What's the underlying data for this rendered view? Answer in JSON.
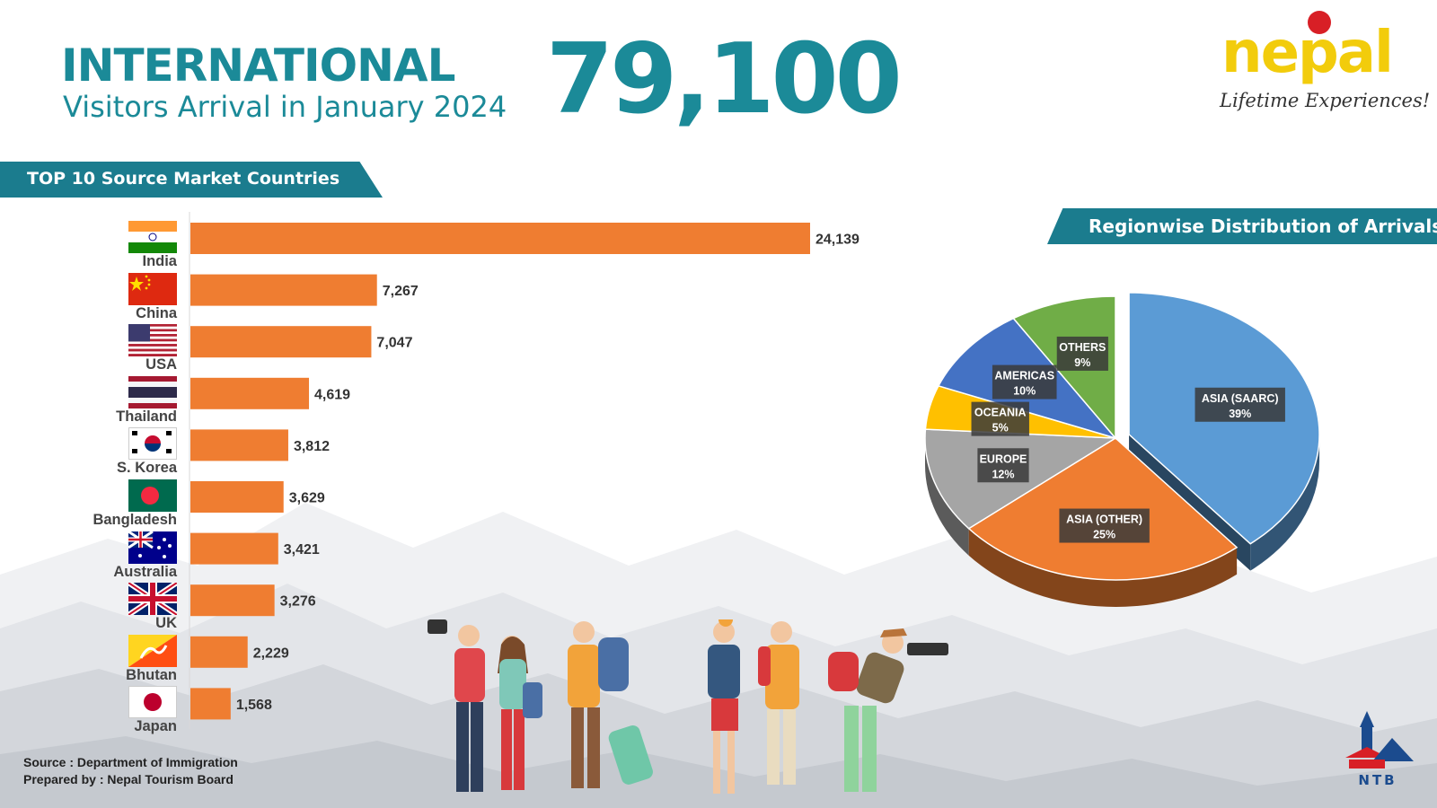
{
  "header": {
    "title_line1": "INTERNATIONAL",
    "title_line2": "Visitors Arrival in January 2024",
    "total": "79,100"
  },
  "logo": {
    "word": "nepal",
    "tagline": "Lifetime Experiences!"
  },
  "ntb_logo": {
    "text": "NTB"
  },
  "colors": {
    "teal": "#1b7c8e",
    "bar": "#ef7d31",
    "pie": [
      "#5b9bd5",
      "#ef7d31",
      "#a5a5a5",
      "#ffc000",
      "#4472c4",
      "#70ad47"
    ]
  },
  "bar_section": {
    "title": "TOP 10 Source Market Countries"
  },
  "pie_section": {
    "title": "Regionwise Distribution of Arrivals"
  },
  "source": {
    "line1": "Source : Department of Immigration",
    "line2": "Prepared by : Nepal Tourism Board"
  },
  "chart_data": [
    {
      "type": "bar",
      "orientation": "horizontal",
      "categories": [
        "India",
        "China",
        "USA",
        "Thailand",
        "S. Korea",
        "Bangladesh",
        "Australia",
        "UK",
        "Bhutan",
        "Japan"
      ],
      "values": [
        24139,
        7267,
        7047,
        4619,
        3812,
        3629,
        3421,
        3276,
        2229,
        1568
      ],
      "value_labels": [
        "24,139",
        "7,267",
        "7,047",
        "4,619",
        "3,812",
        "3,629",
        "3,421",
        "3,276",
        "2,229",
        "1,568"
      ],
      "flags": [
        "india-flag",
        "china-flag",
        "usa-flag",
        "thailand-flag",
        "south-korea-flag",
        "bangladesh-flag",
        "australia-flag",
        "uk-flag",
        "bhutan-flag",
        "japan-flag"
      ],
      "xlim": [
        0,
        24139
      ],
      "grid": false
    },
    {
      "type": "pie",
      "style": "3d",
      "categories": [
        "ASIA (SAARC)",
        "ASIA (OTHER)",
        "EUROPE",
        "OCEANIA",
        "AMERICAS",
        "OTHERS"
      ],
      "values": [
        39,
        25,
        12,
        5,
        10,
        9
      ],
      "value_labels": [
        "39%",
        "25%",
        "12%",
        "5%",
        "10%",
        "9%"
      ],
      "exploded": [
        "ASIA (SAARC)"
      ]
    }
  ]
}
